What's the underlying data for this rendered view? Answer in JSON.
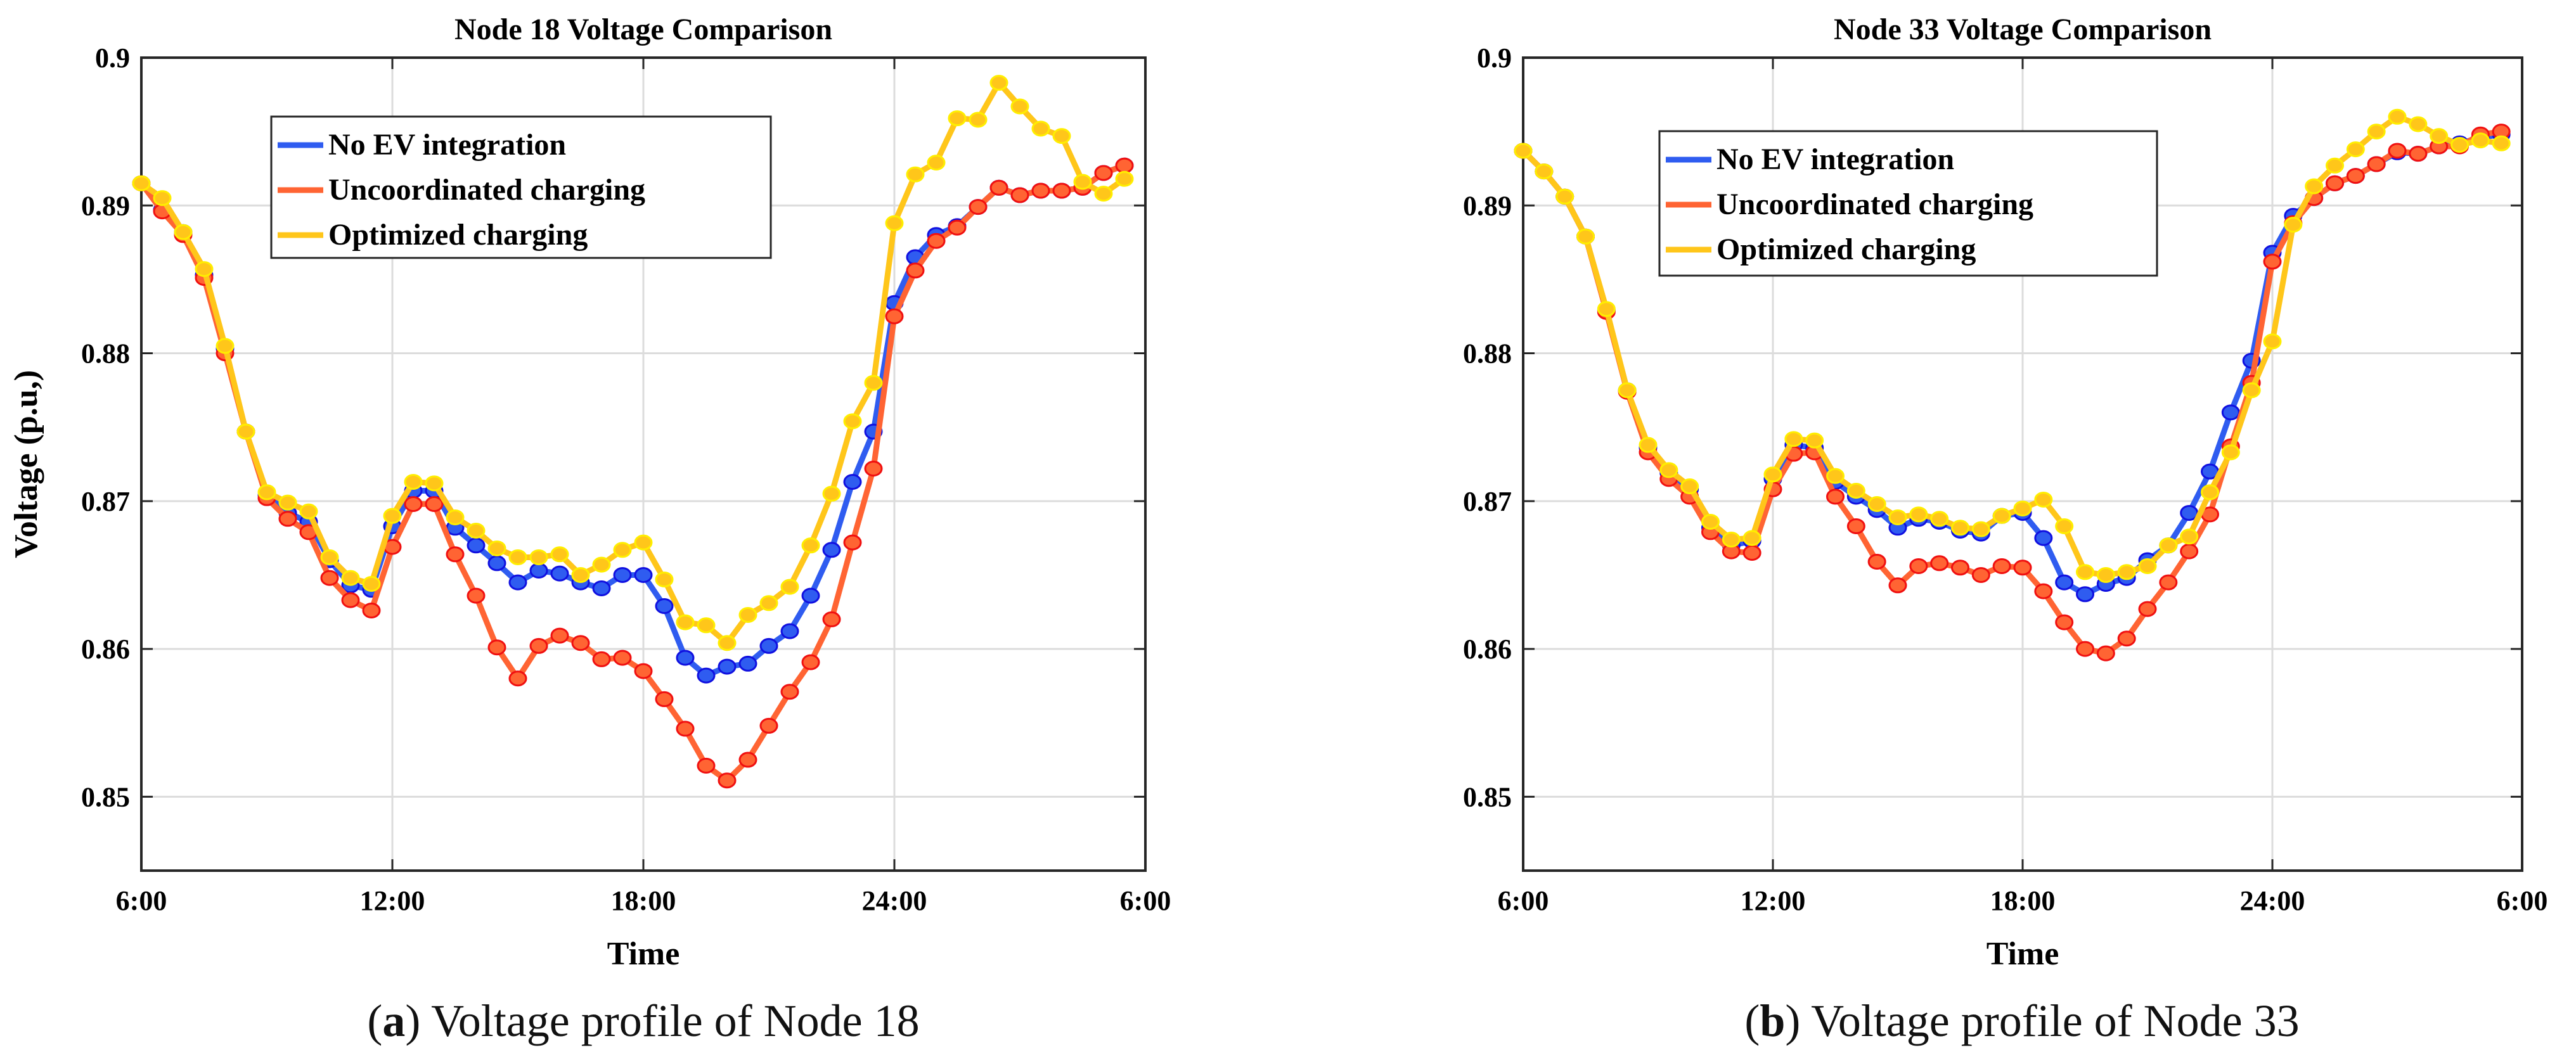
{
  "chart_data": [
    {
      "type": "line",
      "title": "Node 18 Voltage Comparison",
      "xlabel": "Time",
      "ylabel": "Voltage (p.u,)",
      "xticks": [
        "6:00",
        "12:00",
        "18:00",
        "24:00",
        "6:00"
      ],
      "yticks": [
        "0.85",
        "0.86",
        "0.87",
        "0.88",
        "0.89",
        "0.9"
      ],
      "ylim": [
        0.845,
        0.9
      ],
      "x_step": "30 min",
      "grid": true,
      "legend_position": "top-left",
      "caption_label": "a",
      "caption_text": "Voltage profile of Node 18",
      "series": [
        {
          "name": "No EV integration",
          "color": "#2f5cf0",
          "edge": "#1010e0",
          "values": [
            0.8915,
            0.8897,
            0.8882,
            0.8853,
            0.8803,
            0.8747,
            0.8704,
            0.8692,
            0.8686,
            0.866,
            0.8643,
            0.864,
            0.8683,
            0.8707,
            0.8707,
            0.8682,
            0.867,
            0.8658,
            0.8645,
            0.8653,
            0.8651,
            0.8645,
            0.8641,
            0.865,
            0.865,
            0.8629,
            0.8594,
            0.8582,
            0.8588,
            0.859,
            0.8602,
            0.8612,
            0.8636,
            0.8667,
            0.8713,
            0.8747,
            0.8834,
            0.8865,
            0.888,
            0.8886,
            0.8899,
            0.8912,
            0.8907,
            0.891,
            0.891,
            0.8912,
            0.8922,
            0.8927
          ]
        },
        {
          "name": "Uncoordinated charging",
          "color": "#ff6433",
          "edge": "#f01010",
          "values": [
            0.8915,
            0.8896,
            0.888,
            0.8851,
            0.88,
            0.8747,
            0.8702,
            0.8688,
            0.8679,
            0.8648,
            0.8633,
            0.8626,
            0.8669,
            0.8698,
            0.8698,
            0.8664,
            0.8636,
            0.8601,
            0.858,
            0.8602,
            0.8609,
            0.8604,
            0.8593,
            0.8594,
            0.8585,
            0.8566,
            0.8546,
            0.8521,
            0.8511,
            0.8525,
            0.8548,
            0.8571,
            0.8591,
            0.862,
            0.8672,
            0.8722,
            0.8825,
            0.8856,
            0.8876,
            0.8885,
            0.8899,
            0.8912,
            0.8907,
            0.891,
            0.891,
            0.8912,
            0.8922,
            0.8927
          ]
        },
        {
          "name": "Optimized charging",
          "color": "#ffc61a",
          "edge": "#ffee00",
          "values": [
            0.8915,
            0.8905,
            0.8882,
            0.8857,
            0.8805,
            0.8747,
            0.8706,
            0.8699,
            0.8693,
            0.8662,
            0.8648,
            0.8644,
            0.869,
            0.8713,
            0.8712,
            0.8689,
            0.868,
            0.8668,
            0.8662,
            0.8662,
            0.8664,
            0.865,
            0.8657,
            0.8667,
            0.8672,
            0.8647,
            0.8618,
            0.8616,
            0.8604,
            0.8623,
            0.8631,
            0.8642,
            0.867,
            0.8705,
            0.8754,
            0.878,
            0.8888,
            0.8921,
            0.8929,
            0.8959,
            0.8958,
            0.8983,
            0.8967,
            0.8952,
            0.8947,
            0.8916,
            0.8908,
            0.8918
          ]
        }
      ]
    },
    {
      "type": "line",
      "title": "Node 33 Voltage Comparison",
      "xlabel": "Time",
      "ylabel": "",
      "xticks": [
        "6:00",
        "12:00",
        "18:00",
        "24:00",
        "6:00"
      ],
      "yticks": [
        "0.85",
        "0.86",
        "0.87",
        "0.88",
        "0.89",
        "0.9"
      ],
      "ylim": [
        0.845,
        0.9
      ],
      "x_step": "30 min",
      "grid": true,
      "legend_position": "top-left",
      "caption_label": "b",
      "caption_text": "Voltage profile of Node 33",
      "series": [
        {
          "name": "No EV integration",
          "color": "#2f5cf0",
          "edge": "#1010e0",
          "values": [
            0.8937,
            0.8923,
            0.8906,
            0.8879,
            0.8829,
            0.8775,
            0.8736,
            0.8719,
            0.8708,
            0.8682,
            0.867,
            0.8673,
            0.8715,
            0.8738,
            0.8736,
            0.8713,
            0.8703,
            0.8694,
            0.8682,
            0.8688,
            0.8686,
            0.868,
            0.8678,
            0.869,
            0.8692,
            0.8675,
            0.8645,
            0.8637,
            0.8644,
            0.8648,
            0.866,
            0.867,
            0.8692,
            0.872,
            0.876,
            0.8795,
            0.8868,
            0.8893,
            0.8905,
            0.8915,
            0.892,
            0.8928,
            0.8936,
            0.8935,
            0.894,
            0.8942,
            0.8946,
            0.8948
          ]
        },
        {
          "name": "Uncoordinated charging",
          "color": "#ff6433",
          "edge": "#f01010",
          "values": [
            0.8937,
            0.8923,
            0.8906,
            0.8879,
            0.8828,
            0.8774,
            0.8733,
            0.8715,
            0.8703,
            0.8679,
            0.8666,
            0.8665,
            0.8708,
            0.8732,
            0.8733,
            0.8703,
            0.8683,
            0.8659,
            0.8643,
            0.8656,
            0.8658,
            0.8655,
            0.865,
            0.8656,
            0.8655,
            0.8639,
            0.8618,
            0.86,
            0.8597,
            0.8607,
            0.8627,
            0.8645,
            0.8666,
            0.8691,
            0.8737,
            0.878,
            0.8862,
            0.8888,
            0.8905,
            0.8915,
            0.892,
            0.8928,
            0.8937,
            0.8935,
            0.894,
            0.894,
            0.8948,
            0.895
          ]
        },
        {
          "name": "Optimized charging",
          "color": "#ffc61a",
          "edge": "#ffee00",
          "values": [
            0.8937,
            0.8923,
            0.8906,
            0.8879,
            0.883,
            0.8775,
            0.8738,
            0.8721,
            0.871,
            0.8686,
            0.8674,
            0.8675,
            0.8718,
            0.8742,
            0.8741,
            0.8717,
            0.8707,
            0.8698,
            0.8689,
            0.8691,
            0.8688,
            0.8682,
            0.8681,
            0.869,
            0.8695,
            0.8701,
            0.8683,
            0.8652,
            0.865,
            0.8652,
            0.8656,
            0.867,
            0.8676,
            0.8706,
            0.8733,
            0.8775,
            0.8808,
            0.8887,
            0.8913,
            0.8927,
            0.8938,
            0.895,
            0.896,
            0.8955,
            0.8947,
            0.8941,
            0.8944,
            0.8942
          ]
        }
      ]
    }
  ]
}
